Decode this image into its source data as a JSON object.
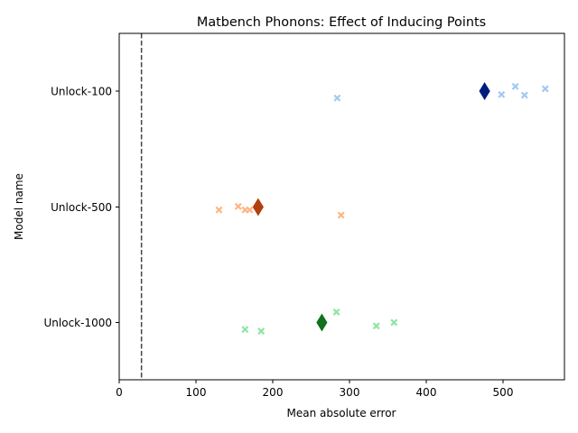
{
  "chart_data": {
    "type": "scatter",
    "title": "Matbench Phonons: Effect of Inducing Points",
    "xlabel": "Mean absolute error",
    "ylabel": "Model name",
    "xlim": [
      0,
      580
    ],
    "xticks": [
      0,
      100,
      200,
      300,
      400,
      500
    ],
    "categories": [
      "Unlock-100",
      "Unlock-500",
      "Unlock-1000"
    ],
    "reference_line": {
      "x": 29,
      "style": "dashed",
      "color": "#444444"
    },
    "grid": false,
    "legend": "none",
    "series": [
      {
        "category": "Unlock-100",
        "point_color": "#a1c9f4",
        "mean_color": "#001c7f",
        "points": [
          {
            "x": 284,
            "jitter": 0.06
          },
          {
            "x": 498,
            "jitter": 0.03
          },
          {
            "x": 516,
            "jitter": -0.04
          },
          {
            "x": 528,
            "jitter": 0.035
          },
          {
            "x": 555,
            "jitter": -0.02
          }
        ],
        "mean": 476
      },
      {
        "category": "Unlock-500",
        "point_color": "#ffb482",
        "mean_color": "#b1400d",
        "points": [
          {
            "x": 130,
            "jitter": 0.025
          },
          {
            "x": 155,
            "jitter": -0.005
          },
          {
            "x": 164,
            "jitter": 0.025
          },
          {
            "x": 170,
            "jitter": 0.025
          },
          {
            "x": 289,
            "jitter": 0.07
          }
        ],
        "mean": 181
      },
      {
        "category": "Unlock-1000",
        "point_color": "#8de5a1",
        "mean_color": "#12711c",
        "points": [
          {
            "x": 164,
            "jitter": 0.06
          },
          {
            "x": 185,
            "jitter": 0.075
          },
          {
            "x": 283,
            "jitter": -0.09
          },
          {
            "x": 335,
            "jitter": 0.03
          },
          {
            "x": 358,
            "jitter": 0.0
          }
        ],
        "mean": 264
      }
    ]
  }
}
